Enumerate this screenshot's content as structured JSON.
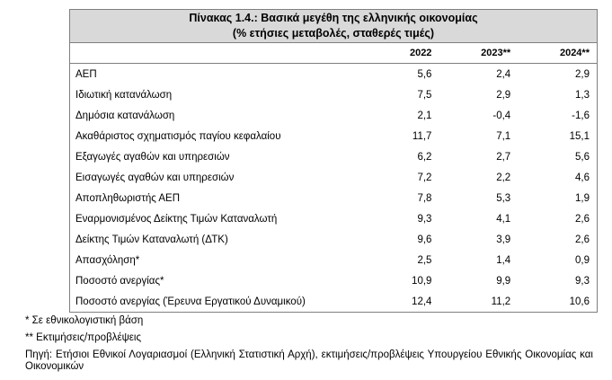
{
  "table": {
    "title": "Πίνακας 1.4.: Βασικά μεγέθη της ελληνικής οικονομίας",
    "subtitle": "(% ετήσιες μεταβολές, σταθερές τιμές)",
    "columns": [
      "2022",
      "2023**",
      "2024**"
    ],
    "rows": [
      [
        "ΑΕΠ",
        "5,6",
        "2,4",
        "2,9"
      ],
      [
        "Ιδιωτική κατανάλωση",
        "7,5",
        "2,9",
        "1,3"
      ],
      [
        "Δημόσια κατανάλωση",
        "2,1",
        "-0,4",
        "-1,6"
      ],
      [
        "Ακαθάριστος σχηματισμός παγίου κεφαλαίου",
        "11,7",
        "7,1",
        "15,1"
      ],
      [
        "Εξαγωγές αγαθών και υπηρεσιών",
        "6,2",
        "2,7",
        "5,6"
      ],
      [
        "Εισαγωγές αγαθών και υπηρεσιών",
        "7,2",
        "2,2",
        "4,6"
      ],
      [
        "Αποπληθωριστής ΑΕΠ",
        "7,8",
        "5,3",
        "1,9"
      ],
      [
        "Εναρμονισμένος Δείκτης Τιμών Καταναλωτή",
        "9,3",
        "4,1",
        "2,6"
      ],
      [
        "Δείκτης Τιμών Καταναλωτή (ΔΤΚ)",
        "9,6",
        "3,9",
        "2,6"
      ],
      [
        "Απασχόληση*",
        "2,5",
        "1,4",
        "0,9"
      ],
      [
        "Ποσοστό ανεργίας*",
        "10,9",
        "9,9",
        "9,3"
      ],
      [
        "Ποσοστό ανεργίας (Έρευνα Εργατικού Δυναμικού)",
        "12,4",
        "11,2",
        "10,6"
      ]
    ]
  },
  "notes": [
    "*  Σε εθνικολογιστική βάση",
    "** Εκτιμήσεις/προβλέψεις",
    "Πηγή: Ετήσιοι Εθνικοί Λογαριασμοί (Ελληνική Στατιστική Αρχή), εκτιμήσεις/προβλέψεις Υπουργείου Εθνικής Οικονομίας και Οικονομικών"
  ]
}
